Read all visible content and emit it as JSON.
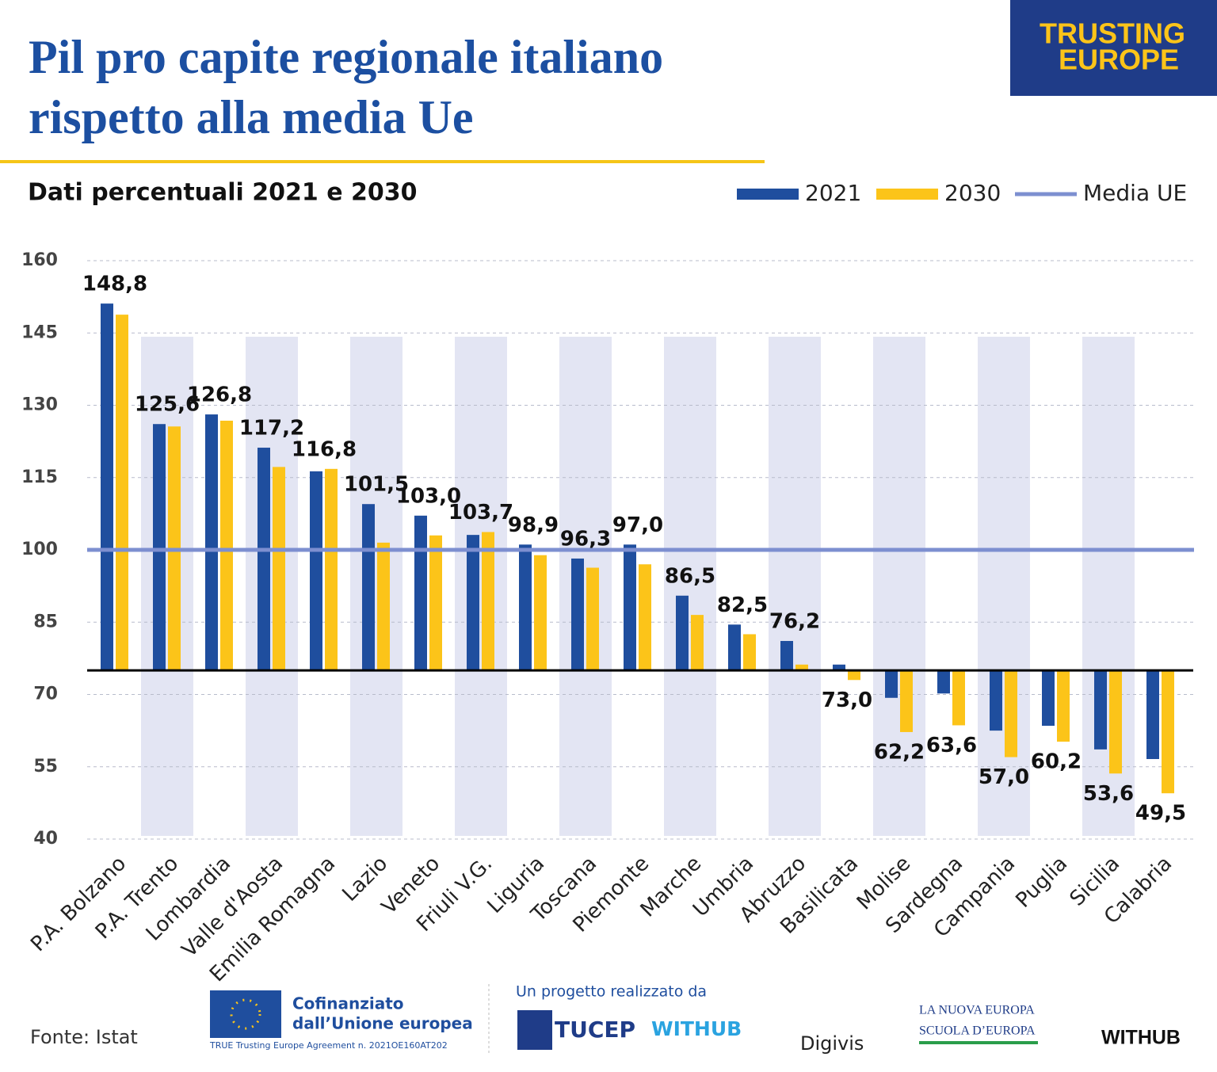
{
  "chart_data": {
    "type": "bar",
    "title": "Pil pro capite regionale italiano rispetto alla media Ue",
    "subtitle": "Dati percentuali 2021 e 2030",
    "categories": [
      "P.A. Bolzano",
      "P.A. Trento",
      "Lombardia",
      "Valle d'Aosta",
      "Emilia Romagna",
      "Lazio",
      "Veneto",
      "Friuli V.G.",
      "Liguria",
      "Toscana",
      "Piemonte",
      "Marche",
      "Umbria",
      "Abruzzo",
      "Basilicata",
      "Molise",
      "Sardegna",
      "Campania",
      "Puglia",
      "Sicilia",
      "Calabria"
    ],
    "series": [
      {
        "name": "2021",
        "color": "#1f4e9e",
        "values": [
          151.1,
          126.1,
          128.1,
          121.2,
          116.3,
          109.5,
          107.1,
          103.1,
          101.1,
          98.2,
          101.1,
          90.5,
          84.5,
          81.1,
          76.2,
          69.3,
          70.2,
          62.5,
          63.5,
          58.6,
          56.6
        ]
      },
      {
        "name": "2030",
        "color": "#fcc419",
        "values": [
          148.8,
          125.6,
          126.8,
          117.2,
          116.8,
          101.5,
          103.0,
          103.7,
          98.9,
          96.3,
          97.0,
          86.5,
          82.5,
          76.2,
          73.0,
          62.2,
          63.6,
          57.0,
          60.2,
          53.6,
          49.5
        ],
        "value_labels": [
          "148,8",
          "125,6",
          "126,8",
          "117,2",
          "116,8",
          "101,5",
          "103,0",
          "103,7",
          "98,9",
          "96,3",
          "97,0",
          "86,5",
          "82,5",
          "76,2",
          "73,0",
          "62,2",
          "63,6",
          "57,0",
          "60,2",
          "53,6",
          "49,5"
        ]
      }
    ],
    "reference_line": {
      "name": "Media UE",
      "value": 100,
      "color": "#7d8fd0"
    },
    "bar_base": 75,
    "ylim": [
      40,
      160
    ],
    "yticks": [
      40,
      55,
      70,
      85,
      100,
      115,
      130,
      145,
      160
    ],
    "grid": true,
    "band_shading": true,
    "legend": "top-right"
  },
  "logo": {
    "line1": "TRUSTING",
    "line2": "EUROPE"
  },
  "footer": {
    "source": "Fonte: Istat",
    "eu_line1": "Cofinanziato",
    "eu_line2": "dall’Unione europea",
    "agreement": "TRUE Trusting Europe Agreement n. 2021OE160AT202",
    "project": "Un progetto realizzato da",
    "partner1": "TUCEP",
    "partner2": "WITHUB",
    "partner3": "Digivis",
    "partner4_line1": "LA NUOVA EUROPA",
    "partner4_line2": "SCUOLA D’EUROPA",
    "partner5": "WITHUB"
  }
}
